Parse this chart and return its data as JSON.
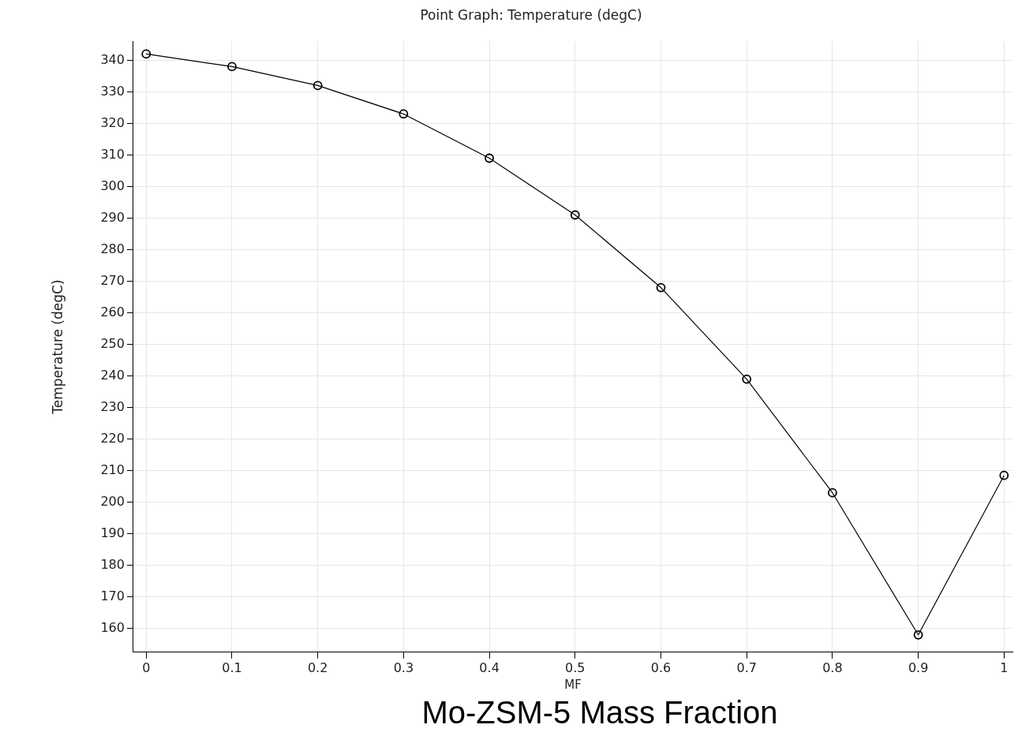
{
  "chart_data": {
    "type": "line",
    "title": "Point Graph: Temperature (degC)",
    "xlabel": "MF",
    "ylabel": "Temperature (degC)",
    "annotations": [
      "Mo-ZSM-5 Mass Fraction"
    ],
    "x": [
      0,
      0.1,
      0.2,
      0.3,
      0.4,
      0.5,
      0.6,
      0.7,
      0.8,
      0.9,
      1
    ],
    "series": [
      {
        "color": "#000000",
        "values": [
          342,
          338,
          332,
          323,
          309,
          291,
          268,
          239,
          203,
          158,
          208.5
        ]
      }
    ],
    "xlim": [
      -0.015,
      1.01
    ],
    "xticks": [
      0,
      0.1,
      0.2,
      0.3,
      0.4,
      0.5,
      0.6,
      0.7,
      0.8,
      0.9,
      1
    ],
    "ylim": [
      152.5,
      346
    ],
    "yticks": [
      160,
      170,
      180,
      190,
      200,
      210,
      220,
      230,
      240,
      250,
      260,
      270,
      280,
      290,
      300,
      310,
      320,
      330,
      340
    ],
    "grid": true,
    "legend": false,
    "marker": "circle",
    "line_style": "solid"
  }
}
